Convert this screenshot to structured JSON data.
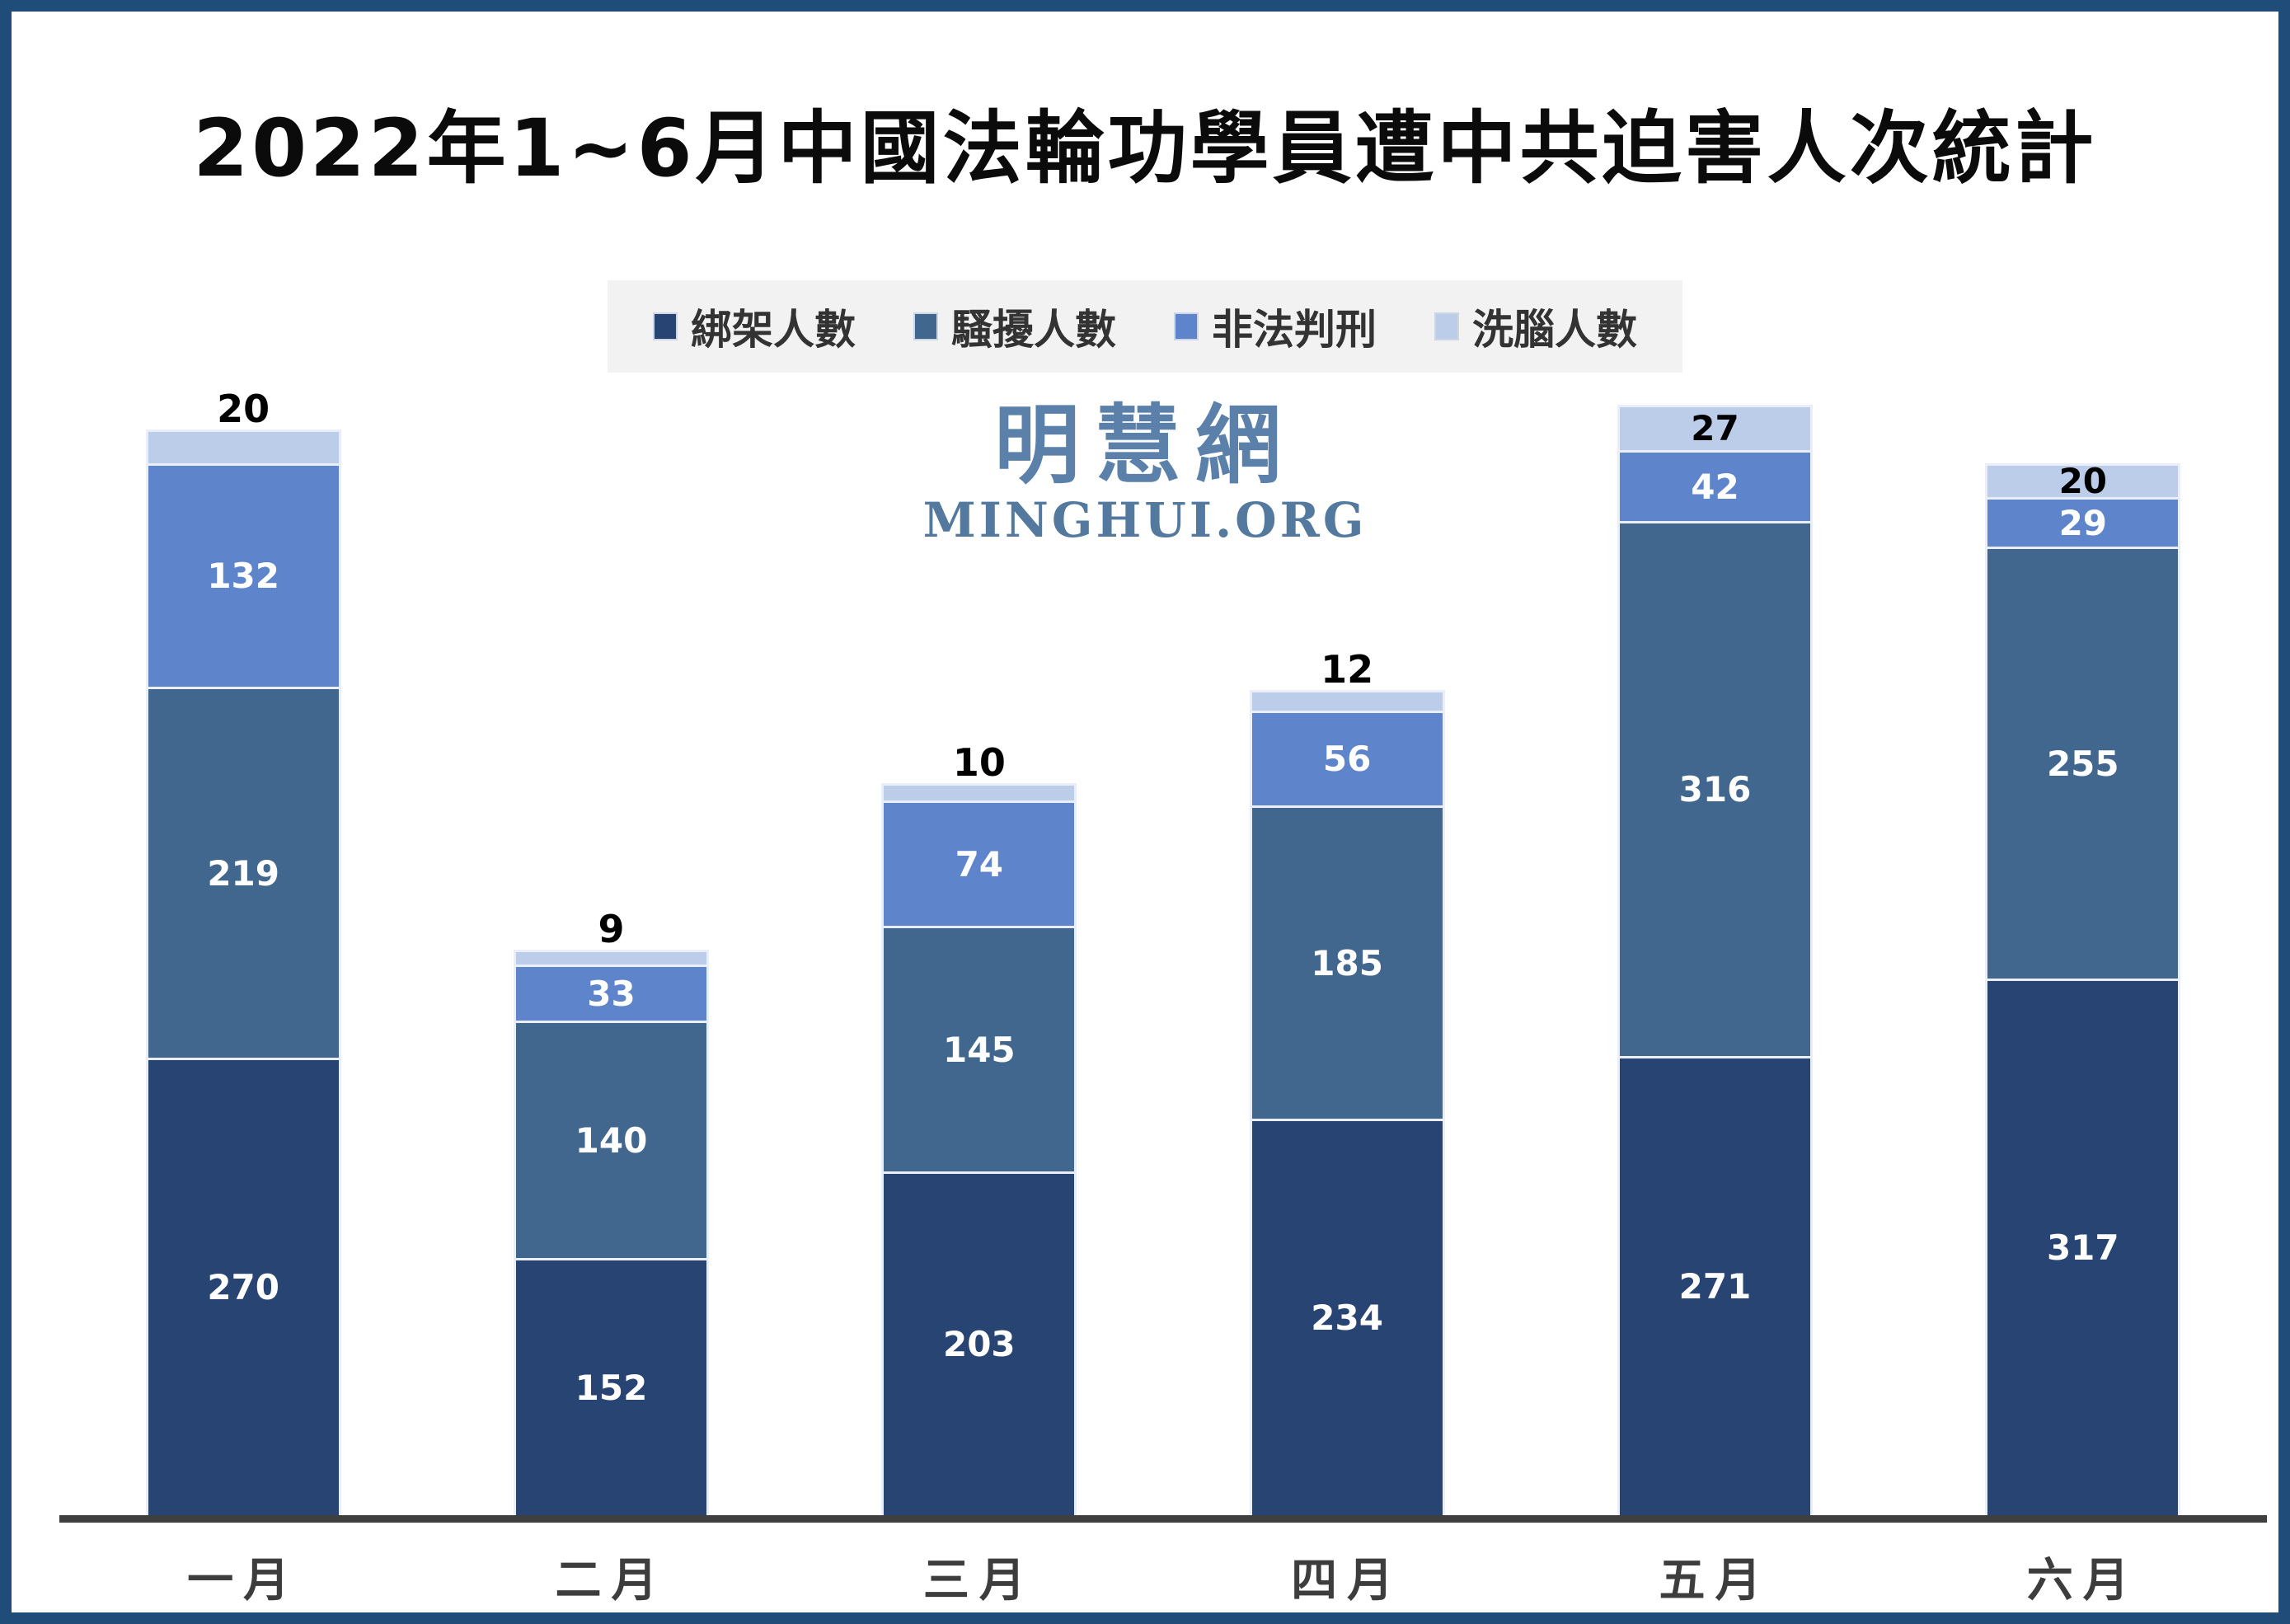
{
  "title": "2022年1~6月中國法輪功學員遭中共迫害人次統計",
  "watermark": {
    "cjk": "明慧網",
    "latin": "MINGHUI.ORG"
  },
  "legend": [
    {
      "label": "綁架人數",
      "color": "#274473"
    },
    {
      "label": "騷擾人數",
      "color": "#41678F"
    },
    {
      "label": "非法判刑",
      "color": "#5E85CB"
    },
    {
      "label": "洗腦人數",
      "color": "#BCCDE9"
    }
  ],
  "chart_data": {
    "type": "bar",
    "stacked": true,
    "title": "2022年1~6月中國法輪功學員遭中共迫害人次統計",
    "categories": [
      "一月",
      "二月",
      "三月",
      "四月",
      "五月",
      "六月"
    ],
    "series": [
      {
        "name": "綁架人數",
        "color": "#274473",
        "text_color": "#ffffff",
        "values": [
          270,
          152,
          203,
          234,
          271,
          317
        ]
      },
      {
        "name": "騷擾人數",
        "color": "#41678F",
        "text_color": "#ffffff",
        "values": [
          219,
          140,
          145,
          185,
          316,
          255
        ]
      },
      {
        "name": "非法判刑",
        "color": "#5E85CB",
        "text_color": "#ffffff",
        "values": [
          132,
          33,
          74,
          56,
          42,
          29
        ]
      },
      {
        "name": "洗腦人數",
        "color": "#BCCDE9",
        "text_color": "#000000",
        "values": [
          20,
          9,
          10,
          12,
          27,
          20
        ]
      }
    ],
    "totals": [
      641,
      334,
      432,
      487,
      656,
      621
    ],
    "top_label_positions": [
      "above",
      "above",
      "above",
      "above",
      "inside",
      "inside"
    ],
    "legend_position": "top-center",
    "grid": false,
    "y_axis_visible": false
  },
  "colors": {
    "frame_border": "#1F4C78",
    "axis_line": "#3f3f3f",
    "legend_background": "#f2f2f2",
    "title_text": "#0b0b0b",
    "month_label_text": "#3d3d3d",
    "watermark_text": "#5b81ab"
  }
}
